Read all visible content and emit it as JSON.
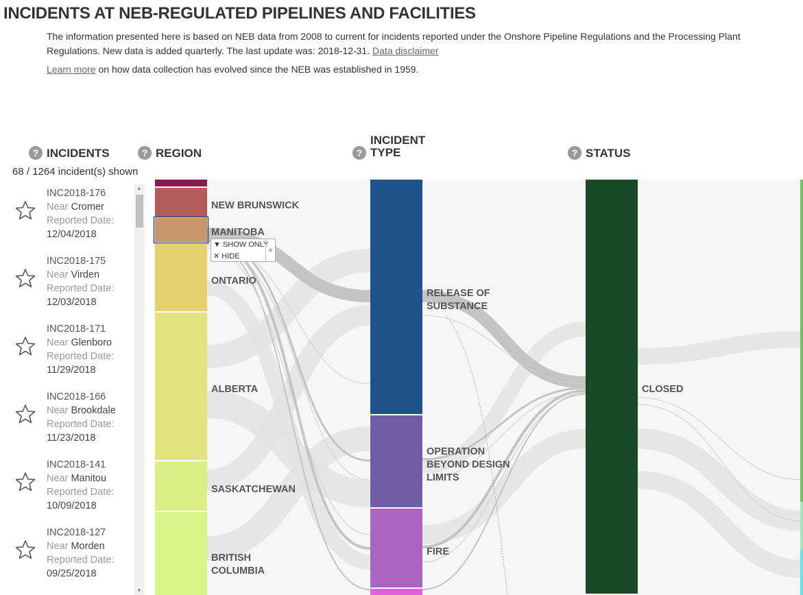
{
  "header": {
    "title": "INCIDENTS AT NEB-REGULATED PIPELINES AND FACILITIES",
    "intro_text": "The information presented here is based on NEB data from 2008 to current for incidents reported under the Onshore Pipeline Regulations and the Processing Plant Regulations. New data is added quarterly. The last update was: 2018-12-31.",
    "disclaimer_link": "Data disclaimer",
    "learn_more_link": "Learn more",
    "learn_more_text": "on how data collection has evolved since the NEB was established in 1959."
  },
  "columns": {
    "incidents": "INCIDENTS",
    "region": "REGION",
    "incident_type_line1": "INCIDENT",
    "incident_type_line2": "TYPE",
    "status": "STATUS",
    "help_glyph": "?"
  },
  "incidents_panel": {
    "shown": "68",
    "separator": "/",
    "total": "1264",
    "suffix": "incident(s) shown",
    "near_label": "Near",
    "date_label": "Reported Date:",
    "items": [
      {
        "id": "INC2018-176",
        "place": "Cromer",
        "date": "12/04/2018"
      },
      {
        "id": "INC2018-175",
        "place": "Virden",
        "date": "12/03/2018"
      },
      {
        "id": "INC2018-171",
        "place": "Glenboro",
        "date": "11/29/2018"
      },
      {
        "id": "INC2018-166",
        "place": "Brookdale",
        "date": "11/23/2018"
      },
      {
        "id": "INC2018-141",
        "place": "Manitou",
        "date": "10/09/2018"
      },
      {
        "id": "INC2018-127",
        "place": "Morden",
        "date": "09/25/2018"
      }
    ]
  },
  "regions": {
    "new_brunswick": "NEW BRUNSWICK",
    "manitoba": "MANITOBA",
    "ontario": "ONTARIO",
    "alberta": "ALBERTA",
    "saskatchewan": "SASKATCHEWAN",
    "bc_line1": "BRITISH",
    "bc_line2": "COLUMBIA"
  },
  "incident_types": {
    "release_line1": "RELEASE OF",
    "release_line2": "SUBSTANCE",
    "op_line1": "OPERATION",
    "op_line2": "BEYOND DESIGN",
    "op_line3": "LIMITS",
    "fire": "FIRE"
  },
  "statuses": {
    "closed": "CLOSED"
  },
  "context_menu": {
    "show_only": "SHOW ONLY",
    "hide": "HIDE"
  },
  "colors": {
    "region_top": "#8b1a4a",
    "new_brunswick": "#b35a5a",
    "manitoba": "#c8946a",
    "ontario": "#e3d06f",
    "alberta": "#e2e37e",
    "saskatchewan": "#dcee86",
    "british_columbia": "#d8f58c",
    "release_of_substance": "#1f5287",
    "operation_beyond_design_limits": "#705ea3",
    "fire": "#ab63c0",
    "type_bottom": "#e060e0",
    "closed": "#184a26",
    "flow_highlight": "#c4c4c4",
    "flow_background": "#efefef"
  }
}
